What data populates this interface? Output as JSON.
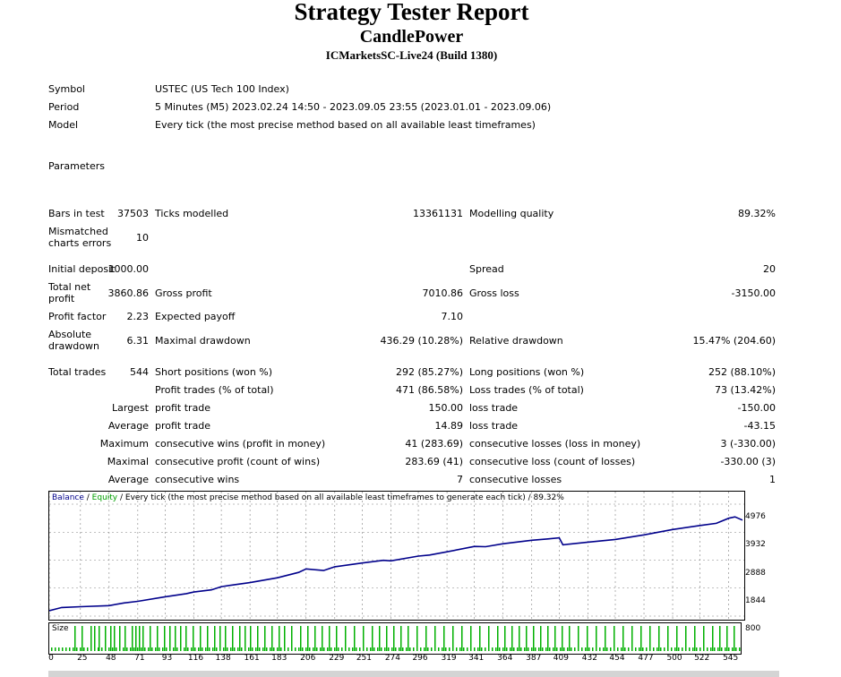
{
  "report": {
    "title": "Strategy Tester Report",
    "subtitle": "CandlePower",
    "server": "ICMarketsSC-Live24 (Build 1380)"
  },
  "info": {
    "symbol_label": "Symbol",
    "symbol_value": "USTEC (US Tech 100 Index)",
    "period_label": "Period",
    "period_value": "5 Minutes (M5) 2023.02.24 14:50 - 2023.09.05 23:55 (2023.01.01 - 2023.09.06)",
    "model_label": "Model",
    "model_value": "Every tick (the most precise method based on all available least timeframes)",
    "parameters_label": "Parameters"
  },
  "stats": {
    "bars_label": "Bars in test",
    "bars_value": "37503",
    "ticks_label": "Ticks modelled",
    "ticks_value": "13361131",
    "quality_label": "Modelling quality",
    "quality_value": "89.32%",
    "mismatch_label_1": "Mismatched",
    "mismatch_label_2": "charts errors",
    "mismatch_value": "10",
    "deposit_label": "Initial deposit",
    "deposit_value": "1000.00",
    "spread_label": "Spread",
    "spread_value": "20",
    "netprofit_label_1": "Total net",
    "netprofit_label_2": "profit",
    "netprofit_value": "3860.86",
    "grossprofit_label": "Gross profit",
    "grossprofit_value": "7010.86",
    "grossloss_label": "Gross loss",
    "grossloss_value": "-3150.00",
    "pf_label": "Profit factor",
    "pf_value": "2.23",
    "payoff_label": "Expected payoff",
    "payoff_value": "7.10",
    "absdd_label_1": "Absolute",
    "absdd_label_2": "drawdown",
    "absdd_value": "6.31",
    "maxdd_label": "Maximal drawdown",
    "maxdd_value": "436.29 (10.28%)",
    "reldd_label": "Relative drawdown",
    "reldd_value": "15.47% (204.60)",
    "trades_label": "Total trades",
    "trades_value": "544",
    "short_label": "Short positions (won %)",
    "short_value": "292 (85.27%)",
    "long_label": "Long positions (won %)",
    "long_value": "252 (88.10%)",
    "profit_trades_label": "Profit trades (% of total)",
    "profit_trades_value": "471 (86.58%)",
    "loss_trades_label": "Loss trades (% of total)",
    "loss_trades_value": "73 (13.42%)",
    "largest_label": "Largest",
    "largest_profit_label": "profit trade",
    "largest_profit_value": "150.00",
    "largest_loss_label": "loss trade",
    "largest_loss_value": "-150.00",
    "average_label": "Average",
    "average_profit_label": "profit trade",
    "average_profit_value": "14.89",
    "average_loss_label": "loss trade",
    "average_loss_value": "-43.15",
    "maximum_label": "Maximum",
    "max_wins_label": "consecutive wins (profit in money)",
    "max_wins_value": "41 (283.69)",
    "max_losses_label": "consecutive losses (loss in money)",
    "max_losses_value": "3 (-330.00)",
    "maximal_label": "Maximal",
    "maximal_profit_label": "consecutive profit (count of wins)",
    "maximal_profit_value": "283.69 (41)",
    "maximal_loss_label": "consecutive loss (count of losses)",
    "maximal_loss_value": "-330.00 (3)",
    "avg2_label": "Average",
    "avg_wins_label": "consecutive wins",
    "avg_wins_value": "7",
    "avg_losses_label": "consecutive losses",
    "avg_losses_value": "1"
  },
  "chart_legend": {
    "balance": "Balance",
    "sep1": " / ",
    "equity": "Equity",
    "rest": " / Every tick (the most precise method based on all available least timeframes to generate each tick) / 89.32%"
  },
  "size_label": "Size",
  "colors": {
    "balance": "#00008b",
    "equity": "#00a000",
    "size_bars": "#00b000",
    "grid": "#808080"
  },
  "chart_data": {
    "type": "line",
    "title": "",
    "xlabel": "",
    "ylabel": "",
    "ylim": [
      800,
      4976
    ],
    "xlim": [
      0,
      556
    ],
    "y_ticks": [
      "4976",
      "3932",
      "2888",
      "1844",
      "800"
    ],
    "x_ticks": [
      "0",
      "25",
      "48",
      "71",
      "93",
      "116",
      "138",
      "161",
      "183",
      "206",
      "229",
      "251",
      "274",
      "296",
      "319",
      "341",
      "364",
      "387",
      "409",
      "432",
      "454",
      "477",
      "500",
      "522",
      "545"
    ],
    "series": [
      {
        "name": "Balance",
        "x": [
          0,
          10,
          25,
          48,
          60,
          71,
          93,
          110,
          116,
          130,
          138,
          150,
          161,
          183,
          200,
          206,
          220,
          229,
          251,
          268,
          274,
          296,
          305,
          319,
          341,
          350,
          364,
          387,
          400,
          409,
          412,
          432,
          454,
          477,
          500,
          522,
          535,
          545,
          550,
          556
        ],
        "y": [
          1000,
          1120,
          1150,
          1190,
          1290,
          1350,
          1520,
          1640,
          1700,
          1780,
          1900,
          1980,
          2050,
          2230,
          2430,
          2560,
          2500,
          2640,
          2780,
          2880,
          2860,
          3040,
          3080,
          3200,
          3400,
          3390,
          3500,
          3630,
          3680,
          3720,
          3460,
          3560,
          3660,
          3830,
          4030,
          4180,
          4260,
          4450,
          4500,
          4380
        ]
      }
    ],
    "size_bars_note": "Size",
    "grid": true
  }
}
